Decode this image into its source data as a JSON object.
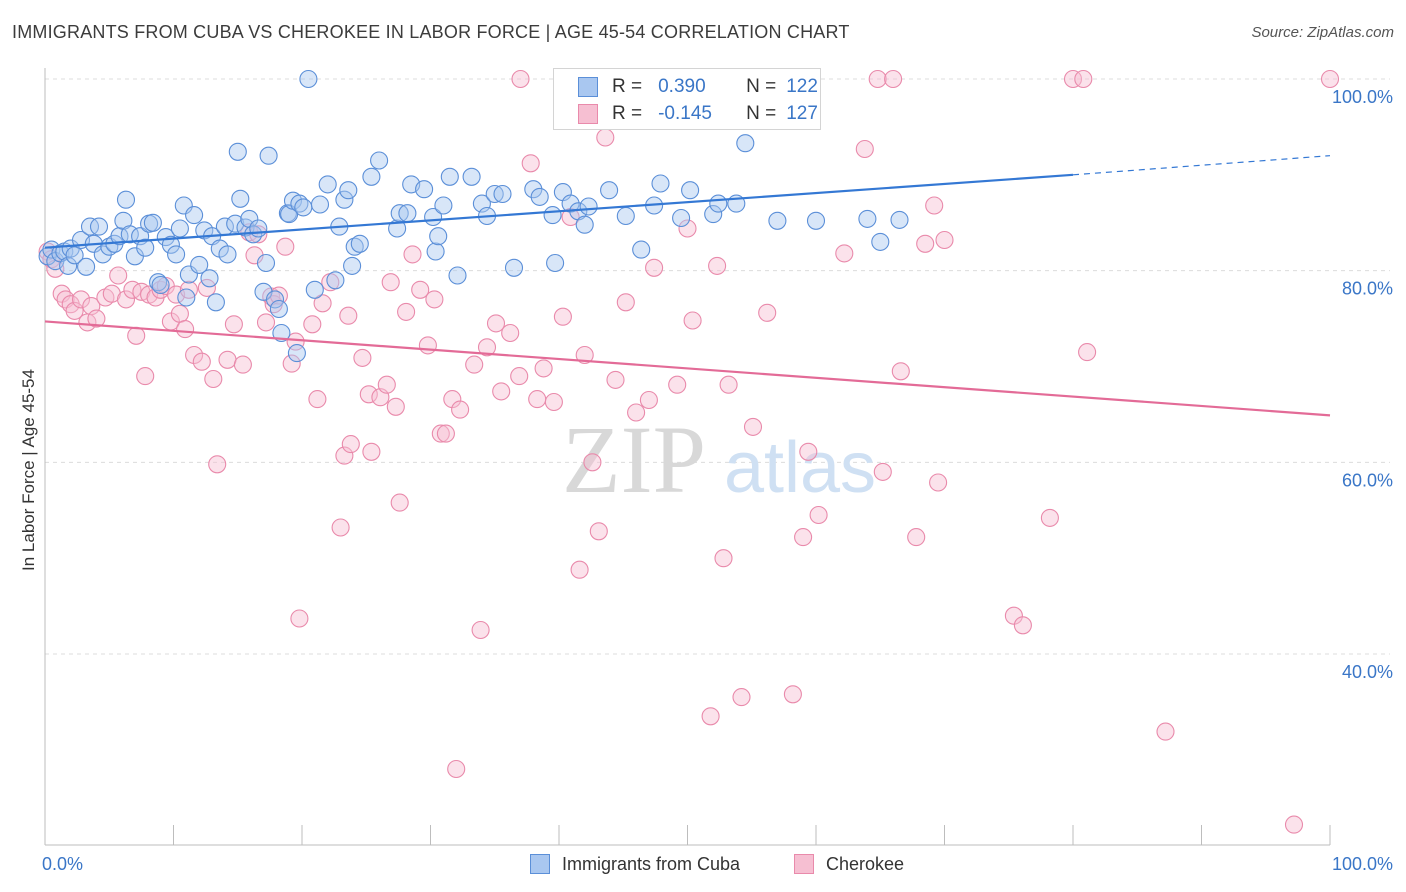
{
  "header": {
    "title": "IMMIGRANTS FROM CUBA VS CHEROKEE IN LABOR FORCE | AGE 45-54 CORRELATION CHART",
    "source": "Source: ZipAtlas.com"
  },
  "legend": {
    "rows": [
      {
        "r_label": "R =",
        "r_value": "0.390",
        "n_label": "N =",
        "n_value": "122"
      },
      {
        "r_label": "R =",
        "r_value": "-0.145",
        "n_label": "N =",
        "n_value": "127"
      }
    ]
  },
  "watermark": {
    "zip": "ZIP",
    "atlas": "atlas"
  },
  "colors": {
    "blue_fill": "#a9c7f0",
    "blue_stroke": "#5b8fd8",
    "blue_line": "#3478d4",
    "pink_fill": "#f6bfd2",
    "pink_stroke": "#e98aab",
    "pink_line": "#e36b97",
    "axis_text": "#3a76c7",
    "grid": "#dcdcdc"
  },
  "chart_data": {
    "type": "scatter",
    "title": "IMMIGRANTS FROM CUBA VS CHEROKEE IN LABOR FORCE | AGE 45-54 CORRELATION CHART",
    "xlabel": "",
    "ylabel": "In Labor Force | Age 45-54",
    "xlim": [
      0,
      100
    ],
    "ylim": [
      19,
      104
    ],
    "x_tick_labels": [
      "0.0%",
      "100.0%"
    ],
    "y_ticks": [
      40,
      60,
      80,
      100
    ],
    "y_tick_labels": [
      "40.0%",
      "60.0%",
      "80.0%",
      "100.0%"
    ],
    "grid": true,
    "legend_position": "top-center",
    "series": [
      {
        "name": "Immigrants from Cuba",
        "color": "#5b8fd8",
        "r": 0.39,
        "n": 122,
        "trend": {
          "x": [
            0,
            80
          ],
          "y": [
            82.4,
            90.0
          ],
          "dashed_extension_to": [
            100,
            92.0
          ]
        },
        "points": [
          [
            0.2,
            81.5
          ],
          [
            0.5,
            82.2
          ],
          [
            0.8,
            81.0
          ],
          [
            1.2,
            81.8
          ],
          [
            1.5,
            82.0
          ],
          [
            1.8,
            80.5
          ],
          [
            2.0,
            82.3
          ],
          [
            2.3,
            81.6
          ],
          [
            2.8,
            83.2
          ],
          [
            3.2,
            80.4
          ],
          [
            3.5,
            84.6
          ],
          [
            3.8,
            82.8
          ],
          [
            4.2,
            84.6
          ],
          [
            4.5,
            81.7
          ],
          [
            5.0,
            82.5
          ],
          [
            5.4,
            82.8
          ],
          [
            5.8,
            83.6
          ],
          [
            6.1,
            85.2
          ],
          [
            6.3,
            87.4
          ],
          [
            6.6,
            83.8
          ],
          [
            7.0,
            81.5
          ],
          [
            7.4,
            83.6
          ],
          [
            7.8,
            82.4
          ],
          [
            8.1,
            84.9
          ],
          [
            8.4,
            85.0
          ],
          [
            8.8,
            78.8
          ],
          [
            9.0,
            78.5
          ],
          [
            9.4,
            83.5
          ],
          [
            9.8,
            82.7
          ],
          [
            10.2,
            81.7
          ],
          [
            10.5,
            84.4
          ],
          [
            10.8,
            86.8
          ],
          [
            11.0,
            77.2
          ],
          [
            11.2,
            79.6
          ],
          [
            11.6,
            85.8
          ],
          [
            12.0,
            80.6
          ],
          [
            12.4,
            84.2
          ],
          [
            12.8,
            79.2
          ],
          [
            13.0,
            83.6
          ],
          [
            13.3,
            76.7
          ],
          [
            13.6,
            82.3
          ],
          [
            14.0,
            84.6
          ],
          [
            14.2,
            81.7
          ],
          [
            14.8,
            84.9
          ],
          [
            15.0,
            92.4
          ],
          [
            15.2,
            87.5
          ],
          [
            15.6,
            84.5
          ],
          [
            15.9,
            85.4
          ],
          [
            16.2,
            83.8
          ],
          [
            16.6,
            84.4
          ],
          [
            17.0,
            77.8
          ],
          [
            17.2,
            80.8
          ],
          [
            17.4,
            92.0
          ],
          [
            17.9,
            77.0
          ],
          [
            18.2,
            76.0
          ],
          [
            18.4,
            73.5
          ],
          [
            18.9,
            86.0
          ],
          [
            19.0,
            85.9
          ],
          [
            19.3,
            87.3
          ],
          [
            19.6,
            71.4
          ],
          [
            19.8,
            87.0
          ],
          [
            20.1,
            86.6
          ],
          [
            20.5,
            100.0
          ],
          [
            21.0,
            78.0
          ],
          [
            21.4,
            86.9
          ],
          [
            22.0,
            89.0
          ],
          [
            22.6,
            79.0
          ],
          [
            22.9,
            84.6
          ],
          [
            23.3,
            87.4
          ],
          [
            23.6,
            88.4
          ],
          [
            23.9,
            80.5
          ],
          [
            24.1,
            82.5
          ],
          [
            24.5,
            82.8
          ],
          [
            25.4,
            89.8
          ],
          [
            26.0,
            91.5
          ],
          [
            27.4,
            84.4
          ],
          [
            27.6,
            86.0
          ],
          [
            28.2,
            86.0
          ],
          [
            28.5,
            89.0
          ],
          [
            29.5,
            88.5
          ],
          [
            30.2,
            85.6
          ],
          [
            30.4,
            82.0
          ],
          [
            30.6,
            83.6
          ],
          [
            31.0,
            86.8
          ],
          [
            31.5,
            89.8
          ],
          [
            32.1,
            79.5
          ],
          [
            33.2,
            89.8
          ],
          [
            34.0,
            87.0
          ],
          [
            34.4,
            85.7
          ],
          [
            35.0,
            88.0
          ],
          [
            35.6,
            88.0
          ],
          [
            36.5,
            80.3
          ],
          [
            38.0,
            88.5
          ],
          [
            38.5,
            87.7
          ],
          [
            39.5,
            85.8
          ],
          [
            39.7,
            80.8
          ],
          [
            40.3,
            88.2
          ],
          [
            40.9,
            87.0
          ],
          [
            41.5,
            86.2
          ],
          [
            42.0,
            84.8
          ],
          [
            42.3,
            86.7
          ],
          [
            43.9,
            88.4
          ],
          [
            45.2,
            85.7
          ],
          [
            46.4,
            82.2
          ],
          [
            47.4,
            86.8
          ],
          [
            47.9,
            89.1
          ],
          [
            49.5,
            85.5
          ],
          [
            50.2,
            88.4
          ],
          [
            52.0,
            85.9
          ],
          [
            52.4,
            87.0
          ],
          [
            53.8,
            87.0
          ],
          [
            54.5,
            93.3
          ],
          [
            57.0,
            85.2
          ],
          [
            60.0,
            85.2
          ],
          [
            64.0,
            85.4
          ],
          [
            65.0,
            83.0
          ],
          [
            66.5,
            85.3
          ]
        ]
      },
      {
        "name": "Cherokee",
        "color": "#e98aab",
        "r": -0.145,
        "n": 127,
        "trend": {
          "x": [
            0,
            100
          ],
          "y": [
            74.7,
            64.9
          ]
        },
        "points": [
          [
            0.2,
            82.0
          ],
          [
            0.5,
            81.2
          ],
          [
            0.8,
            80.2
          ],
          [
            1.3,
            77.6
          ],
          [
            1.6,
            77.0
          ],
          [
            2.0,
            76.5
          ],
          [
            2.3,
            75.8
          ],
          [
            2.8,
            77.0
          ],
          [
            3.3,
            74.6
          ],
          [
            3.6,
            76.3
          ],
          [
            4.0,
            75.0
          ],
          [
            4.7,
            77.2
          ],
          [
            5.2,
            77.6
          ],
          [
            5.7,
            79.5
          ],
          [
            6.3,
            77.0
          ],
          [
            6.8,
            78.0
          ],
          [
            7.1,
            73.2
          ],
          [
            7.5,
            77.8
          ],
          [
            7.8,
            69.0
          ],
          [
            8.1,
            77.5
          ],
          [
            8.6,
            77.2
          ],
          [
            9.0,
            78.0
          ],
          [
            9.4,
            78.4
          ],
          [
            9.8,
            74.7
          ],
          [
            10.2,
            77.5
          ],
          [
            10.5,
            75.5
          ],
          [
            10.9,
            73.9
          ],
          [
            11.2,
            78.0
          ],
          [
            11.6,
            71.2
          ],
          [
            12.2,
            70.5
          ],
          [
            12.6,
            78.2
          ],
          [
            13.1,
            68.7
          ],
          [
            13.4,
            59.8
          ],
          [
            14.2,
            70.7
          ],
          [
            14.7,
            74.4
          ],
          [
            15.4,
            70.2
          ],
          [
            15.9,
            84.0
          ],
          [
            16.3,
            81.6
          ],
          [
            16.6,
            83.8
          ],
          [
            17.2,
            74.6
          ],
          [
            17.6,
            77.3
          ],
          [
            17.8,
            76.5
          ],
          [
            18.2,
            77.4
          ],
          [
            18.7,
            82.5
          ],
          [
            19.2,
            70.3
          ],
          [
            19.5,
            72.6
          ],
          [
            19.8,
            43.7
          ],
          [
            20.8,
            74.4
          ],
          [
            21.2,
            66.6
          ],
          [
            21.6,
            76.6
          ],
          [
            22.2,
            78.8
          ],
          [
            23.0,
            53.2
          ],
          [
            23.3,
            60.7
          ],
          [
            23.6,
            75.3
          ],
          [
            23.8,
            61.9
          ],
          [
            24.7,
            70.9
          ],
          [
            25.2,
            67.1
          ],
          [
            25.4,
            61.1
          ],
          [
            26.1,
            66.8
          ],
          [
            26.6,
            68.1
          ],
          [
            26.9,
            78.8
          ],
          [
            27.3,
            65.8
          ],
          [
            27.6,
            55.8
          ],
          [
            28.1,
            75.7
          ],
          [
            28.6,
            81.7
          ],
          [
            29.2,
            78.0
          ],
          [
            29.8,
            72.2
          ],
          [
            30.3,
            77.0
          ],
          [
            30.8,
            63.0
          ],
          [
            31.2,
            63.0
          ],
          [
            31.7,
            66.6
          ],
          [
            32.0,
            28.0
          ],
          [
            32.3,
            65.5
          ],
          [
            33.4,
            70.2
          ],
          [
            33.9,
            42.5
          ],
          [
            34.4,
            72.0
          ],
          [
            35.1,
            74.5
          ],
          [
            35.5,
            67.4
          ],
          [
            36.2,
            73.5
          ],
          [
            36.9,
            69.0
          ],
          [
            37.0,
            100.0
          ],
          [
            37.8,
            91.2
          ],
          [
            38.3,
            66.6
          ],
          [
            38.8,
            69.8
          ],
          [
            39.6,
            66.3
          ],
          [
            40.3,
            75.2
          ],
          [
            40.9,
            85.6
          ],
          [
            41.6,
            48.8
          ],
          [
            42.0,
            71.2
          ],
          [
            42.6,
            60.0
          ],
          [
            43.1,
            52.8
          ],
          [
            43.6,
            93.9
          ],
          [
            44.4,
            68.6
          ],
          [
            45.2,
            76.7
          ],
          [
            46.0,
            65.2
          ],
          [
            47.0,
            66.5
          ],
          [
            47.4,
            80.3
          ],
          [
            49.2,
            68.1
          ],
          [
            50.0,
            84.4
          ],
          [
            50.4,
            74.8
          ],
          [
            51.8,
            33.5
          ],
          [
            52.3,
            80.5
          ],
          [
            52.8,
            50.0
          ],
          [
            53.2,
            68.1
          ],
          [
            54.2,
            35.5
          ],
          [
            55.1,
            63.7
          ],
          [
            56.2,
            75.6
          ],
          [
            58.2,
            35.8
          ],
          [
            59.0,
            52.2
          ],
          [
            59.4,
            61.1
          ],
          [
            60.2,
            54.5
          ],
          [
            62.2,
            81.8
          ],
          [
            63.8,
            92.7
          ],
          [
            64.8,
            100.0
          ],
          [
            65.2,
            59.0
          ],
          [
            66.0,
            100.0
          ],
          [
            66.6,
            69.5
          ],
          [
            67.8,
            52.2
          ],
          [
            68.5,
            82.8
          ],
          [
            69.2,
            86.8
          ],
          [
            69.5,
            57.9
          ],
          [
            70.0,
            83.2
          ],
          [
            75.4,
            44.0
          ],
          [
            76.1,
            43.0
          ],
          [
            78.2,
            54.2
          ],
          [
            80.0,
            100.0
          ],
          [
            80.8,
            100.0
          ],
          [
            81.1,
            71.5
          ],
          [
            87.2,
            31.9
          ],
          [
            97.2,
            22.2
          ],
          [
            100.0,
            100.0
          ]
        ]
      }
    ]
  }
}
